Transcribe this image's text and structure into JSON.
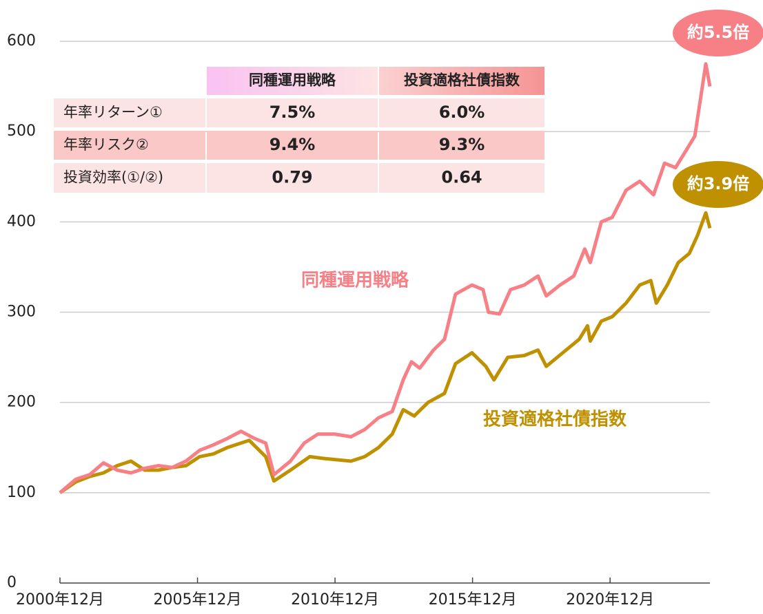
{
  "chart_data": {
    "type": "line",
    "xlim": [
      2000.92,
      2024.55
    ],
    "xticks": [
      {
        "value": 2000.92,
        "label": "2000年12月"
      },
      {
        "value": 2005.92,
        "label": "2005年12月"
      },
      {
        "value": 2010.92,
        "label": "2010年12月"
      },
      {
        "value": 2015.92,
        "label": "2015年12月"
      },
      {
        "value": 2020.92,
        "label": "2020年12月"
      }
    ],
    "ylim": [
      0,
      600
    ],
    "yticks": [
      0,
      100,
      200,
      300,
      400,
      500,
      600
    ],
    "grid": true,
    "series": [
      {
        "name": "同種運用戦略",
        "color": "#f77f86",
        "x": [
          2000.92,
          2001.5,
          2002,
          2002.5,
          2003,
          2003.5,
          2004,
          2004.5,
          2005,
          2005.5,
          2006,
          2006.5,
          2007,
          2007.5,
          2008,
          2008.4,
          2008.7,
          2009.3,
          2009.8,
          2010.3,
          2010.9,
          2011.5,
          2012,
          2012.5,
          2013,
          2013.4,
          2013.7,
          2014,
          2014.5,
          2014.9,
          2015.3,
          2015.9,
          2016.3,
          2016.5,
          2016.9,
          2017.3,
          2017.8,
          2018.3,
          2018.6,
          2019.1,
          2019.6,
          2020.0,
          2020.2,
          2020.6,
          2021.0,
          2021.5,
          2022.0,
          2022.5,
          2022.9,
          2023.3,
          2023.7,
          2024.0,
          2024.4,
          2024.55
        ],
        "values": [
          100,
          115,
          120,
          133,
          125,
          122,
          127,
          130,
          128,
          135,
          147,
          153,
          160,
          168,
          160,
          155,
          120,
          135,
          155,
          165,
          165,
          162,
          170,
          183,
          190,
          225,
          245,
          238,
          258,
          270,
          320,
          330,
          325,
          300,
          298,
          325,
          330,
          340,
          318,
          330,
          340,
          370,
          355,
          400,
          405,
          435,
          445,
          430,
          465,
          460,
          480,
          495,
          575,
          550
        ]
      },
      {
        "name": "投資適格社債指数",
        "color": "#bf9000",
        "x": [
          2000.92,
          2001.5,
          2002,
          2002.5,
          2003,
          2003.5,
          2004,
          2004.5,
          2005,
          2005.5,
          2006,
          2006.5,
          2007,
          2007.8,
          2008.4,
          2008.7,
          2009.3,
          2010,
          2010.5,
          2011.5,
          2012,
          2012.5,
          2013,
          2013.4,
          2013.8,
          2014.3,
          2014.9,
          2015.3,
          2015.9,
          2016.4,
          2016.7,
          2017.2,
          2017.8,
          2018.3,
          2018.6,
          2019.2,
          2019.8,
          2020.1,
          2020.2,
          2020.6,
          2021,
          2021.5,
          2022,
          2022.4,
          2022.6,
          2023,
          2023.4,
          2023.8,
          2024.1,
          2024.4,
          2024.55
        ],
        "values": [
          100,
          112,
          118,
          122,
          130,
          135,
          125,
          125,
          128,
          130,
          140,
          143,
          150,
          158,
          140,
          113,
          125,
          140,
          138,
          135,
          140,
          150,
          165,
          192,
          185,
          200,
          210,
          243,
          255,
          240,
          225,
          250,
          252,
          258,
          240,
          255,
          270,
          285,
          268,
          290,
          295,
          310,
          330,
          335,
          310,
          330,
          355,
          365,
          385,
          410,
          393
        ]
      }
    ],
    "annotations": [
      {
        "text": "約5.5倍",
        "color": "#f77f86"
      },
      {
        "text": "約3.9倍",
        "color": "#bf9000"
      }
    ],
    "table": {
      "columns": [
        "同種運用戦略",
        "投資適格社債指数"
      ],
      "rows": [
        [
          "年率リターン①",
          "7.5%",
          "6.0%"
        ],
        [
          "年率リスク②",
          "9.4%",
          "9.3%"
        ],
        [
          "投資効率(①/②)",
          "0.79",
          "0.64"
        ]
      ]
    }
  }
}
